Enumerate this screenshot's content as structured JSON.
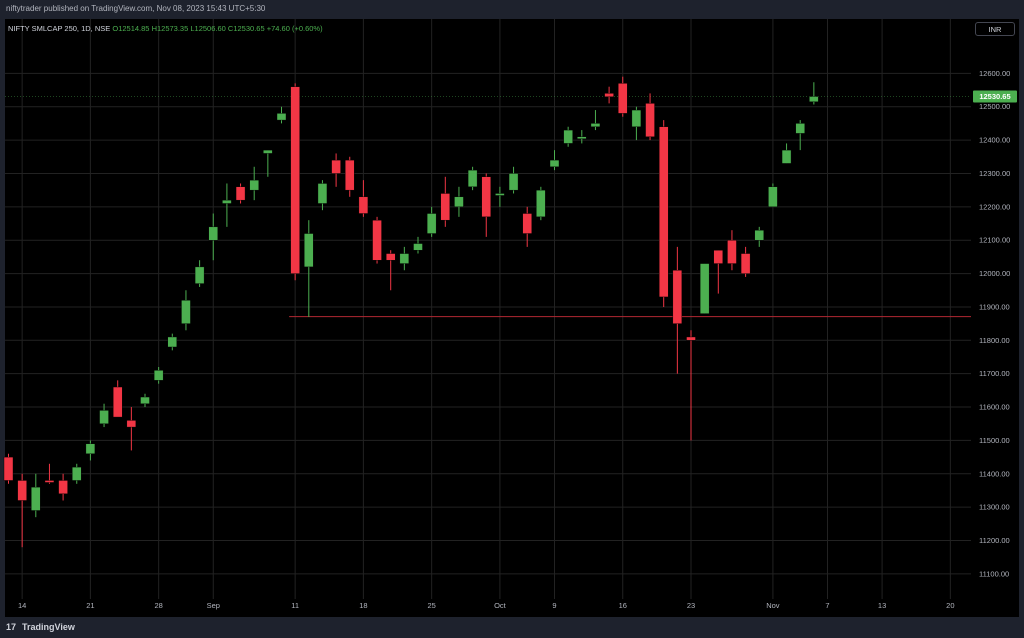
{
  "header": {
    "published_by": "niftytrader published on TradingView.com, Nov 08, 2023 15:43 UTC+5:30"
  },
  "legend": {
    "symbol": "NIFTY SMLCAP 250, 1D, NSE",
    "open": "O12514.85",
    "high": "H12573.35",
    "low": "L12506.60",
    "close": "C12530.65",
    "change": "+74.60 (+0.60%)"
  },
  "currency_label": "INR",
  "footer": {
    "brand": "TradingView",
    "logo": "17"
  },
  "colors": {
    "up": "#4caf50",
    "down": "#f23645",
    "support_line": "#b22833",
    "price_label": "#4caf50",
    "background": "#000000"
  },
  "chart_data": {
    "type": "candlestick",
    "title": "",
    "ylim": [
      11000,
      12700
    ],
    "y_ticks": [
      11100,
      11200,
      11300,
      11400,
      11500,
      11600,
      11700,
      11800,
      11900,
      12000,
      12100,
      12200,
      12300,
      12400,
      12500,
      12600
    ],
    "y_tick_labels": [
      "11100.00",
      "11200.00",
      "11300.00",
      "11400.00",
      "11500.00",
      "11600.00",
      "11700.00",
      "11800.00",
      "11900.00",
      "12000.00",
      "12100.00",
      "12200.00",
      "12300.00",
      "12400.00",
      "12500.00",
      "12600.00"
    ],
    "x_tick_labels": [
      {
        "label": "14",
        "index": 1
      },
      {
        "label": "21",
        "index": 6
      },
      {
        "label": "28",
        "index": 11
      },
      {
        "label": "Sep",
        "index": 15
      },
      {
        "label": "11",
        "index": 21
      },
      {
        "label": "18",
        "index": 26
      },
      {
        "label": "25",
        "index": 31
      },
      {
        "label": "Oct",
        "index": 36
      },
      {
        "label": "9",
        "index": 40
      },
      {
        "label": "16",
        "index": 45
      },
      {
        "label": "23",
        "index": 50
      },
      {
        "label": "Nov",
        "index": 56
      },
      {
        "label": "7",
        "index": 60
      },
      {
        "label": "13",
        "index": 64
      },
      {
        "label": "20",
        "index": 69
      }
    ],
    "last_price": 12530.65,
    "last_price_label": "12530.65",
    "support_level": 11871,
    "support_start_index": 21,
    "candles": [
      {
        "o": 11450,
        "h": 11460,
        "l": 11370,
        "c": 11380
      },
      {
        "o": 11380,
        "h": 11400,
        "l": 11180,
        "c": 11320
      },
      {
        "o": 11290,
        "h": 11400,
        "l": 11270,
        "c": 11360
      },
      {
        "o": 11380,
        "h": 11430,
        "l": 11370,
        "c": 11375
      },
      {
        "o": 11380,
        "h": 11400,
        "l": 11320,
        "c": 11340
      },
      {
        "o": 11380,
        "h": 11430,
        "l": 11370,
        "c": 11420
      },
      {
        "o": 11460,
        "h": 11500,
        "l": 11440,
        "c": 11490
      },
      {
        "o": 11550,
        "h": 11610,
        "l": 11540,
        "c": 11590
      },
      {
        "o": 11660,
        "h": 11680,
        "l": 11580,
        "c": 11570
      },
      {
        "o": 11560,
        "h": 11600,
        "l": 11470,
        "c": 11540
      },
      {
        "o": 11610,
        "h": 11640,
        "l": 11600,
        "c": 11630
      },
      {
        "o": 11680,
        "h": 11720,
        "l": 11670,
        "c": 11710
      },
      {
        "o": 11780,
        "h": 11820,
        "l": 11770,
        "c": 11810
      },
      {
        "o": 11850,
        "h": 11950,
        "l": 11830,
        "c": 11920
      },
      {
        "o": 11970,
        "h": 12040,
        "l": 11960,
        "c": 12020
      },
      {
        "o": 12100,
        "h": 12180,
        "l": 12040,
        "c": 12140
      },
      {
        "o": 12210,
        "h": 12270,
        "l": 12140,
        "c": 12220
      },
      {
        "o": 12260,
        "h": 12270,
        "l": 12210,
        "c": 12220
      },
      {
        "o": 12250,
        "h": 12320,
        "l": 12220,
        "c": 12280
      },
      {
        "o": 12360,
        "h": 12370,
        "l": 12290,
        "c": 12370
      },
      {
        "o": 12460,
        "h": 12500,
        "l": 12450,
        "c": 12480
      },
      {
        "o": 12560,
        "h": 12570,
        "l": 11980,
        "c": 12000
      },
      {
        "o": 12020,
        "h": 12160,
        "l": 11870,
        "c": 12120
      },
      {
        "o": 12210,
        "h": 12280,
        "l": 12190,
        "c": 12270
      },
      {
        "o": 12340,
        "h": 12360,
        "l": 12260,
        "c": 12300
      },
      {
        "o": 12340,
        "h": 12350,
        "l": 12230,
        "c": 12250
      },
      {
        "o": 12230,
        "h": 12280,
        "l": 12170,
        "c": 12180
      },
      {
        "o": 12160,
        "h": 12170,
        "l": 12030,
        "c": 12040
      },
      {
        "o": 12060,
        "h": 12070,
        "l": 11950,
        "c": 12040
      },
      {
        "o": 12030,
        "h": 12080,
        "l": 12010,
        "c": 12060
      },
      {
        "o": 12070,
        "h": 12110,
        "l": 12060,
        "c": 12090
      },
      {
        "o": 12120,
        "h": 12200,
        "l": 12110,
        "c": 12180
      },
      {
        "o": 12240,
        "h": 12290,
        "l": 12140,
        "c": 12160
      },
      {
        "o": 12200,
        "h": 12260,
        "l": 12170,
        "c": 12230
      },
      {
        "o": 12260,
        "h": 12320,
        "l": 12250,
        "c": 12310
      },
      {
        "o": 12290,
        "h": 12300,
        "l": 12110,
        "c": 12170
      },
      {
        "o": 12240,
        "h": 12260,
        "l": 12200,
        "c": 12240
      },
      {
        "o": 12250,
        "h": 12320,
        "l": 12240,
        "c": 12300
      },
      {
        "o": 12180,
        "h": 12200,
        "l": 12080,
        "c": 12120
      },
      {
        "o": 12170,
        "h": 12260,
        "l": 12160,
        "c": 12250
      },
      {
        "o": 12320,
        "h": 12370,
        "l": 12310,
        "c": 12340
      },
      {
        "o": 12390,
        "h": 12440,
        "l": 12380,
        "c": 12430
      },
      {
        "o": 12410,
        "h": 12430,
        "l": 12390,
        "c": 12410
      },
      {
        "o": 12440,
        "h": 12490,
        "l": 12430,
        "c": 12450
      },
      {
        "o": 12540,
        "h": 12560,
        "l": 12510,
        "c": 12530
      },
      {
        "o": 12570,
        "h": 12590,
        "l": 12470,
        "c": 12480
      },
      {
        "o": 12440,
        "h": 12500,
        "l": 12400,
        "c": 12490
      },
      {
        "o": 12510,
        "h": 12540,
        "l": 12400,
        "c": 12410
      },
      {
        "o": 12440,
        "h": 12460,
        "l": 11900,
        "c": 11930
      },
      {
        "o": 12010,
        "h": 12080,
        "l": 11700,
        "c": 11850
      },
      {
        "o": 11810,
        "h": 11830,
        "l": 11500,
        "c": 11800
      },
      {
        "o": 11880,
        "h": 12030,
        "l": 11880,
        "c": 12030
      },
      {
        "o": 12070,
        "h": 12070,
        "l": 11940,
        "c": 12030
      },
      {
        "o": 12100,
        "h": 12130,
        "l": 12010,
        "c": 12030
      },
      {
        "o": 12060,
        "h": 12080,
        "l": 11990,
        "c": 12000
      },
      {
        "o": 12100,
        "h": 12140,
        "l": 12080,
        "c": 12130
      },
      {
        "o": 12200,
        "h": 12270,
        "l": 12200,
        "c": 12260
      },
      {
        "o": 12330,
        "h": 12390,
        "l": 12330,
        "c": 12370
      },
      {
        "o": 12420,
        "h": 12460,
        "l": 12370,
        "c": 12450
      },
      {
        "o": 12514.85,
        "h": 12573.35,
        "l": 12506.6,
        "c": 12530.65
      }
    ]
  }
}
